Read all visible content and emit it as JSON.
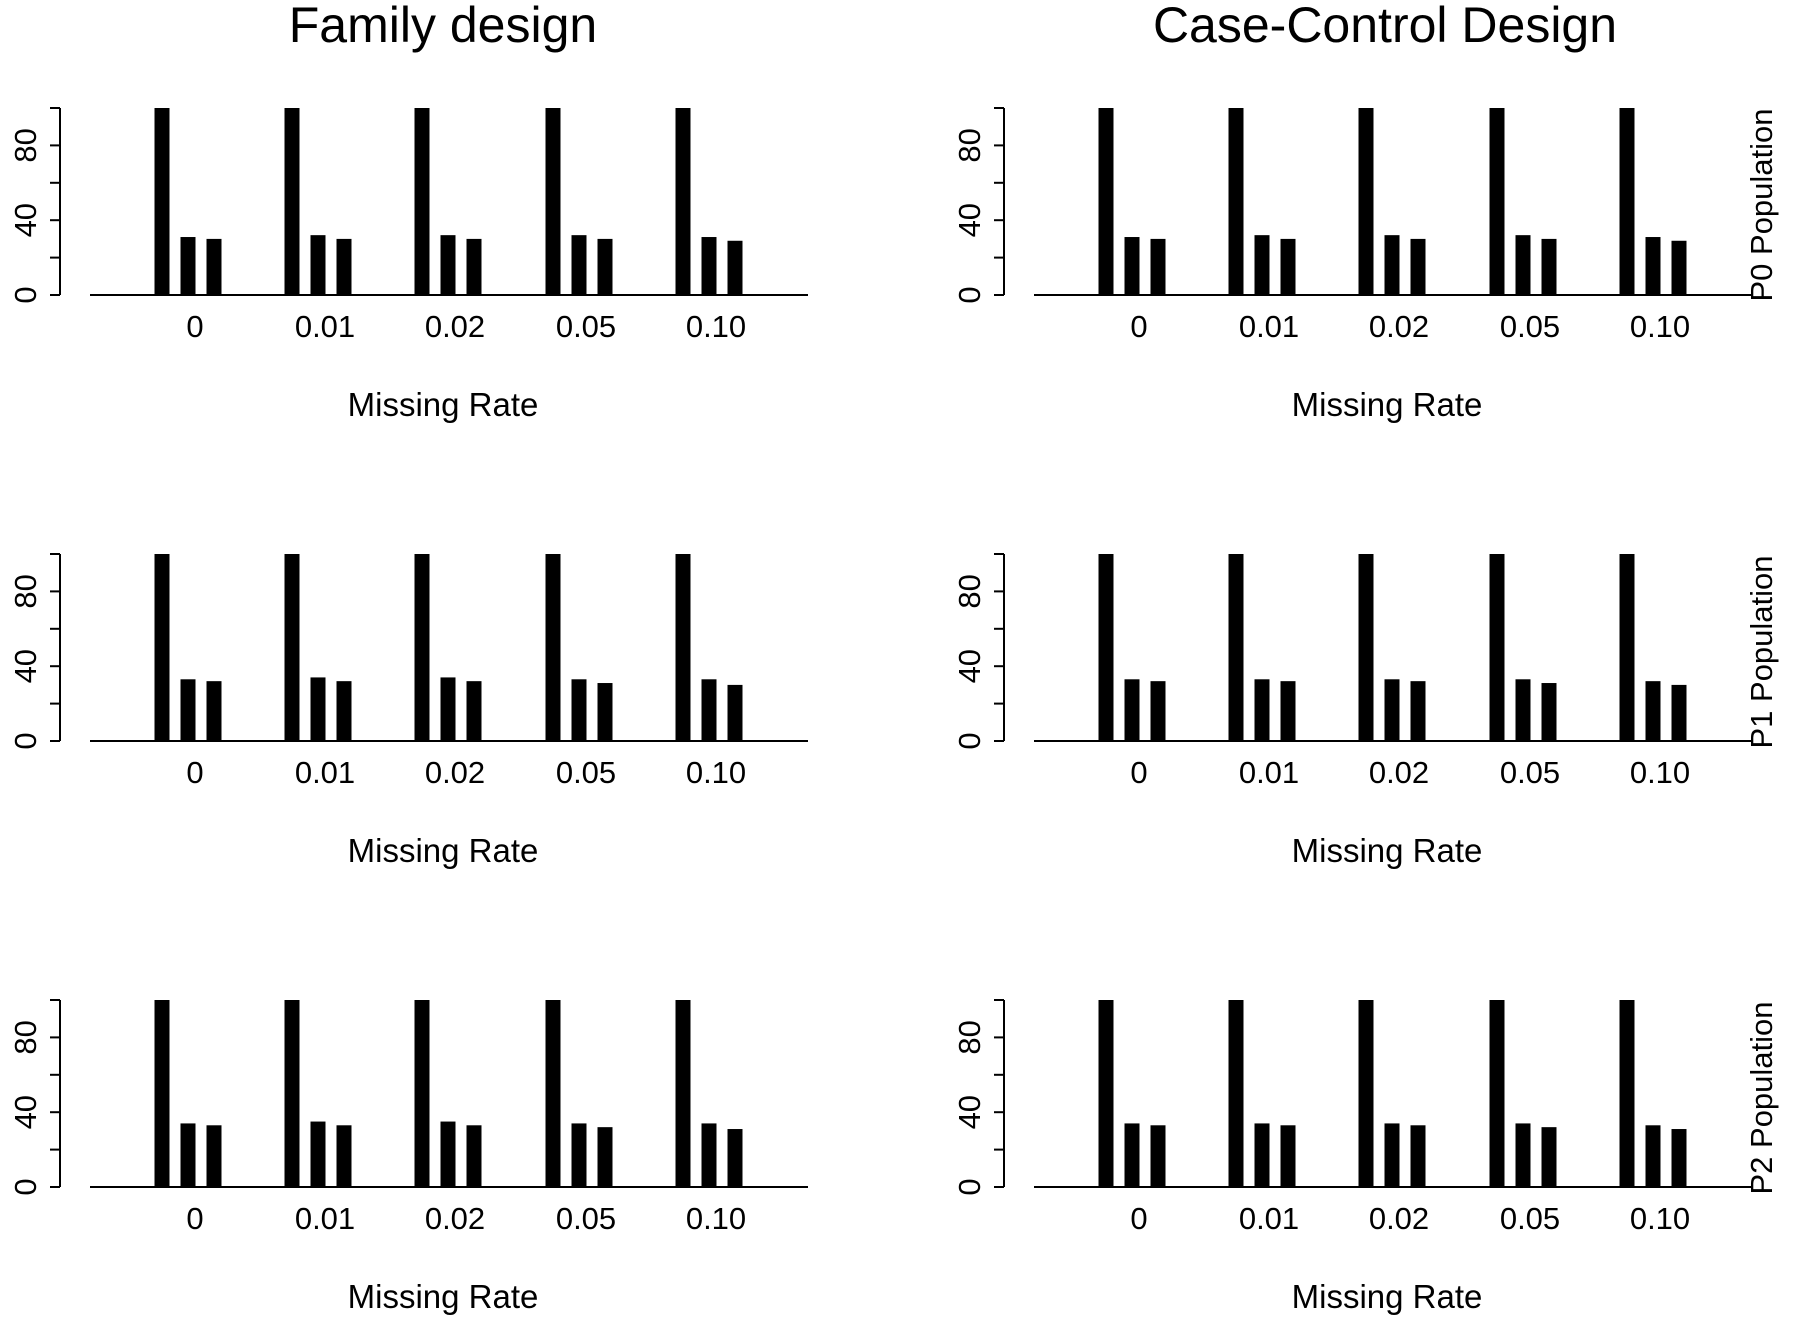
{
  "column_titles": [
    "Family design",
    "Case-Control Design"
  ],
  "row_labels": [
    "P0 Population",
    "P1 Population",
    "P2 Population"
  ],
  "chart_data": [
    {
      "type": "bar",
      "panel": "Family design / P0 Population",
      "xlabel": "Missing Rate",
      "categories": [
        "0",
        "0.01",
        "0.02",
        "0.05",
        "0.10"
      ],
      "ylim": [
        0,
        100
      ],
      "yticks": [
        "0",
        "40",
        "80"
      ],
      "series": [
        {
          "values": [
            100,
            100,
            100,
            100,
            100
          ]
        },
        {
          "values": [
            31,
            32,
            32,
            32,
            31
          ]
        },
        {
          "values": [
            30,
            30,
            30,
            30,
            29
          ]
        }
      ]
    },
    {
      "type": "bar",
      "panel": "Case-Control Design / P0 Population",
      "xlabel": "Missing Rate",
      "categories": [
        "0",
        "0.01",
        "0.02",
        "0.05",
        "0.10"
      ],
      "ylim": [
        0,
        100
      ],
      "yticks": [
        "0",
        "40",
        "80"
      ],
      "series": [
        {
          "values": [
            100,
            100,
            100,
            100,
            100
          ]
        },
        {
          "values": [
            31,
            32,
            32,
            32,
            31
          ]
        },
        {
          "values": [
            30,
            30,
            30,
            30,
            29
          ]
        }
      ]
    },
    {
      "type": "bar",
      "panel": "Family design / P1 Population",
      "xlabel": "Missing Rate",
      "categories": [
        "0",
        "0.01",
        "0.02",
        "0.05",
        "0.10"
      ],
      "ylim": [
        0,
        100
      ],
      "yticks": [
        "0",
        "40",
        "80"
      ],
      "series": [
        {
          "values": [
            100,
            100,
            100,
            100,
            100
          ]
        },
        {
          "values": [
            33,
            34,
            34,
            33,
            33
          ]
        },
        {
          "values": [
            32,
            32,
            32,
            31,
            30
          ]
        }
      ]
    },
    {
      "type": "bar",
      "panel": "Case-Control Design / P1 Population",
      "xlabel": "Missing Rate",
      "categories": [
        "0",
        "0.01",
        "0.02",
        "0.05",
        "0.10"
      ],
      "ylim": [
        0,
        100
      ],
      "yticks": [
        "0",
        "40",
        "80"
      ],
      "series": [
        {
          "values": [
            100,
            100,
            100,
            100,
            100
          ]
        },
        {
          "values": [
            33,
            33,
            33,
            33,
            32
          ]
        },
        {
          "values": [
            32,
            32,
            32,
            31,
            30
          ]
        }
      ]
    },
    {
      "type": "bar",
      "panel": "Family design / P2 Population",
      "xlabel": "Missing Rate",
      "categories": [
        "0",
        "0.01",
        "0.02",
        "0.05",
        "0.10"
      ],
      "ylim": [
        0,
        100
      ],
      "yticks": [
        "0",
        "40",
        "80"
      ],
      "series": [
        {
          "values": [
            100,
            100,
            100,
            100,
            100
          ]
        },
        {
          "values": [
            34,
            35,
            35,
            34,
            34
          ]
        },
        {
          "values": [
            33,
            33,
            33,
            32,
            31
          ]
        }
      ]
    },
    {
      "type": "bar",
      "panel": "Case-Control Design / P2 Population",
      "xlabel": "Missing Rate",
      "categories": [
        "0",
        "0.01",
        "0.02",
        "0.05",
        "0.10"
      ],
      "ylim": [
        0,
        100
      ],
      "yticks": [
        "0",
        "40",
        "80"
      ],
      "series": [
        {
          "values": [
            100,
            100,
            100,
            100,
            100
          ]
        },
        {
          "values": [
            34,
            34,
            34,
            34,
            33
          ]
        },
        {
          "values": [
            33,
            33,
            33,
            32,
            31
          ]
        }
      ]
    }
  ]
}
